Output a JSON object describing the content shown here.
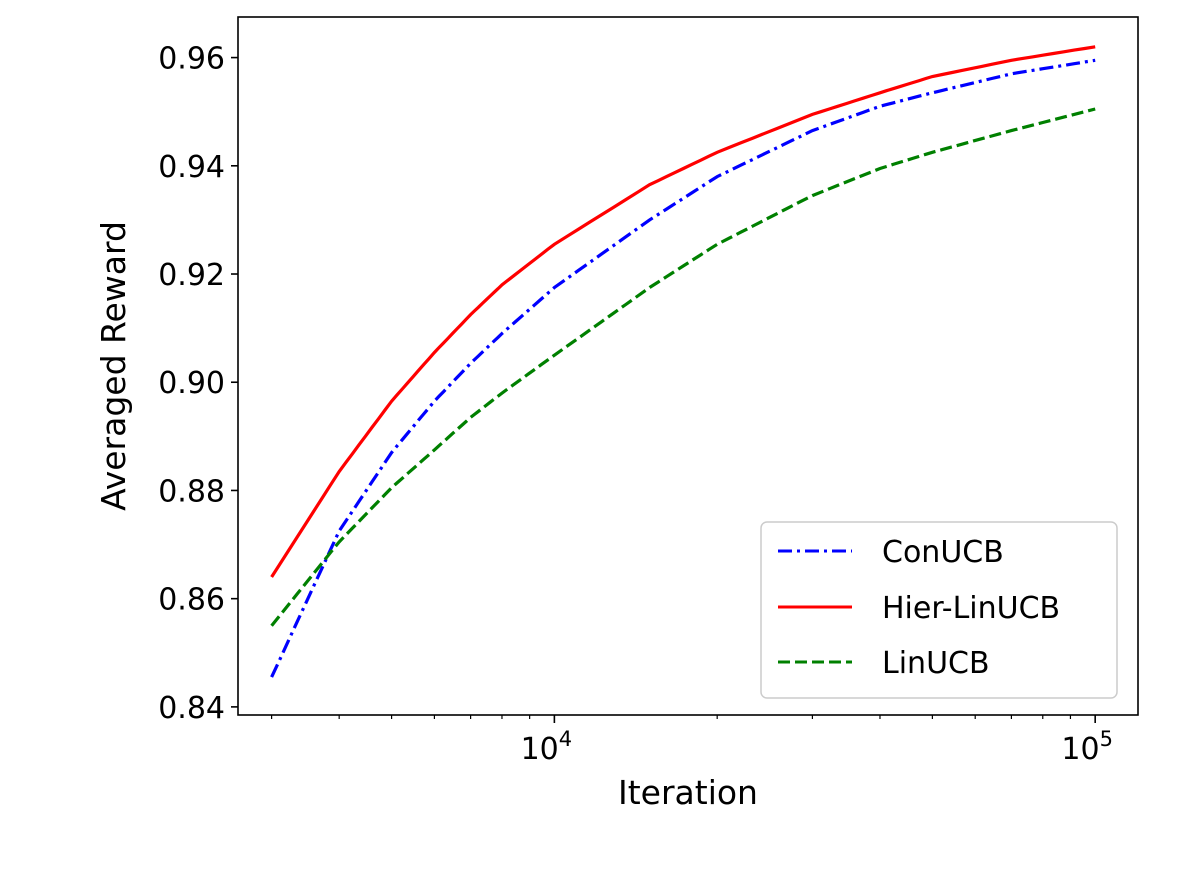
{
  "chart_data": {
    "type": "line",
    "title": "",
    "xlabel": "Iteration",
    "ylabel": "Averaged Reward",
    "xscale": "log",
    "xlim": [
      2600,
      120000
    ],
    "ylim": [
      0.8385,
      0.9675
    ],
    "xticks": [
      {
        "value": 10000,
        "base": "10",
        "exp": "4"
      },
      {
        "value": 100000,
        "base": "10",
        "exp": "5"
      }
    ],
    "yticks": [
      {
        "value": 0.84,
        "label": "0.84"
      },
      {
        "value": 0.86,
        "label": "0.86"
      },
      {
        "value": 0.88,
        "label": "0.88"
      },
      {
        "value": 0.9,
        "label": "0.90"
      },
      {
        "value": 0.92,
        "label": "0.92"
      },
      {
        "value": 0.94,
        "label": "0.94"
      },
      {
        "value": 0.96,
        "label": "0.96"
      }
    ],
    "grid": false,
    "legend_position": "lower-right",
    "series": [
      {
        "name": "ConUCB",
        "color": "#0000ff",
        "style": "dashdot",
        "x": [
          3000,
          4000,
          5000,
          6000,
          7000,
          8000,
          10000,
          15000,
          20000,
          30000,
          40000,
          50000,
          70000,
          100000
        ],
        "y": [
          0.8455,
          0.8725,
          0.887,
          0.8965,
          0.9035,
          0.909,
          0.9175,
          0.93,
          0.938,
          0.9465,
          0.951,
          0.9535,
          0.957,
          0.9595
        ]
      },
      {
        "name": "Hier-LinUCB",
        "color": "#ff0000",
        "style": "solid",
        "x": [
          3000,
          4000,
          5000,
          6000,
          7000,
          8000,
          10000,
          15000,
          20000,
          30000,
          40000,
          50000,
          70000,
          100000
        ],
        "y": [
          0.864,
          0.8835,
          0.8965,
          0.9055,
          0.9125,
          0.918,
          0.9255,
          0.9365,
          0.9425,
          0.9495,
          0.9535,
          0.9565,
          0.9595,
          0.962
        ]
      },
      {
        "name": "LinUCB",
        "color": "#008000",
        "style": "dashed",
        "x": [
          3000,
          4000,
          5000,
          6000,
          7000,
          8000,
          10000,
          15000,
          20000,
          30000,
          40000,
          50000,
          70000,
          100000
        ],
        "y": [
          0.855,
          0.8705,
          0.8805,
          0.8875,
          0.8935,
          0.898,
          0.905,
          0.9175,
          0.9255,
          0.9345,
          0.9395,
          0.9425,
          0.9465,
          0.9505
        ]
      }
    ]
  }
}
